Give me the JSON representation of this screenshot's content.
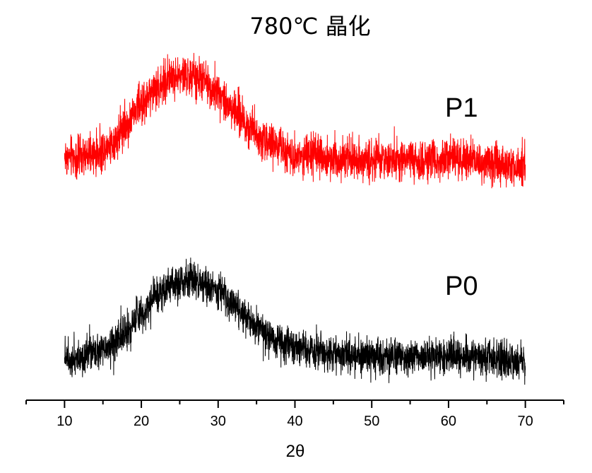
{
  "chart_data": {
    "type": "line",
    "title": "780℃ 晶化",
    "xlabel": "2θ",
    "ylabel": "",
    "xlim": [
      5,
      75
    ],
    "ylim": [
      0,
      1000
    ],
    "y_units": "arbitrary intensity (no y-axis shown)",
    "x_ticks": [
      10,
      20,
      30,
      40,
      50,
      60,
      70
    ],
    "x_tick_labels": [
      "10",
      "20",
      "30",
      "40",
      "50",
      "60",
      "70"
    ],
    "x_minor_ticks": [
      5,
      15,
      25,
      35,
      45,
      55,
      65,
      75
    ],
    "grid": false,
    "legend": "none (series labels placed beside curves at upper-right)",
    "series": [
      {
        "name": "P1",
        "label": "P1",
        "color": "#ff0000",
        "x_range": [
          10,
          70
        ],
        "noise_amplitude": 45,
        "envelope": {
          "x": [
            10,
            12,
            14,
            16,
            18,
            20,
            22,
            24,
            26,
            28,
            30,
            32,
            34,
            36,
            38,
            40,
            45,
            50,
            55,
            60,
            65,
            70
          ],
          "y": [
            655,
            650,
            660,
            690,
            740,
            795,
            840,
            868,
            872,
            860,
            828,
            782,
            738,
            700,
            676,
            660,
            652,
            645,
            643,
            648,
            640,
            630
          ]
        }
      },
      {
        "name": "P0",
        "label": "P0",
        "color": "#000000",
        "x_range": [
          10,
          70
        ],
        "noise_amplitude": 40,
        "envelope": {
          "x": [
            10,
            12,
            14,
            16,
            18,
            20,
            22,
            24,
            26,
            28,
            30,
            32,
            34,
            36,
            38,
            40,
            45,
            50,
            55,
            60,
            65,
            70
          ],
          "y": [
            115,
            115,
            122,
            145,
            185,
            235,
            280,
            310,
            322,
            312,
            290,
            255,
            215,
            180,
            155,
            140,
            125,
            115,
            115,
            118,
            115,
            105
          ]
        }
      }
    ]
  }
}
